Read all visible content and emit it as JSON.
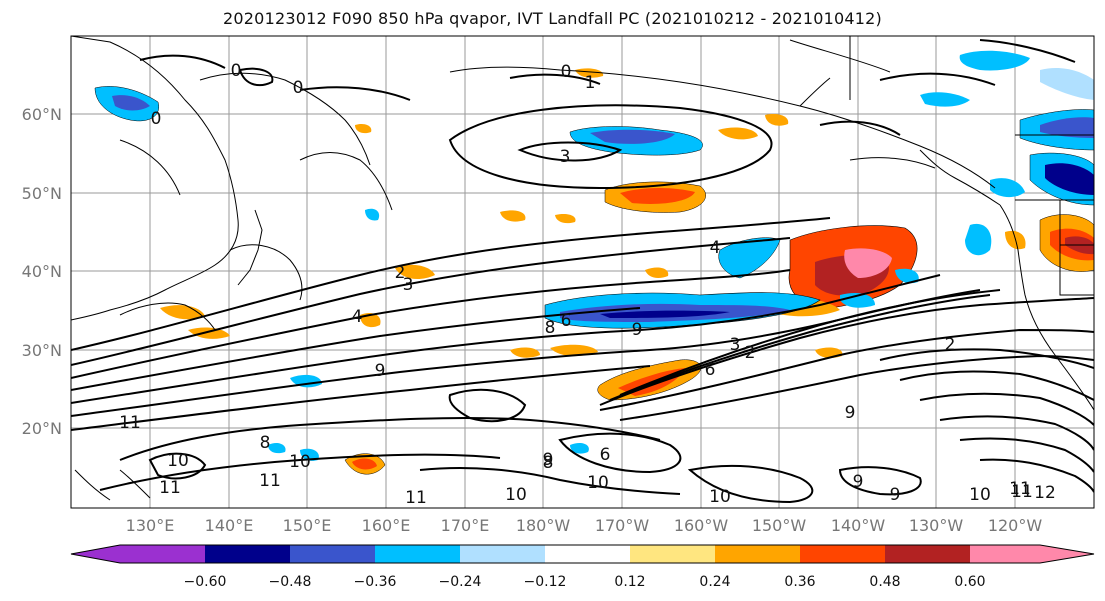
{
  "title": "2020123012 F090 850 hPa qvapor, IVT Landfall PC (2021010212 - 2021010412)",
  "map": {
    "lat_labels": [
      "60°N",
      "50°N",
      "40°N",
      "30°N",
      "20°N"
    ],
    "lon_labels": [
      "130°E",
      "140°E",
      "150°E",
      "160°E",
      "170°E",
      "180°W",
      "170°W",
      "160°W",
      "150°W",
      "140°W",
      "130°W",
      "120°W"
    ],
    "contour_labels": [
      "0",
      "0",
      "0",
      "1",
      "0",
      "3",
      "2",
      "3",
      "4",
      "4",
      "6",
      "8",
      "9",
      "9",
      "2",
      "3",
      "6",
      "2",
      "9",
      "9",
      "11",
      "10",
      "11",
      "8",
      "10",
      "11",
      "6",
      "8",
      "11",
      "10",
      "10",
      "11",
      "10",
      "11",
      "12",
      "9",
      "9",
      "10"
    ]
  },
  "colorbar": {
    "ticks": [
      "−0.60",
      "−0.48",
      "−0.36",
      "−0.24",
      "−0.12",
      "0.12",
      "0.24",
      "0.36",
      "0.48",
      "0.60"
    ],
    "colors": {
      "under": "#9b30d0",
      "c1": "#00008b",
      "c2": "#3a55cc",
      "c3": "#00bfff",
      "c4": "#b0e0ff",
      "c5": "#ffffff",
      "c6": "#ffe680",
      "c7": "#ffa500",
      "c8": "#ff4500",
      "c9": "#b22222",
      "over": "#ff88aa"
    }
  }
}
